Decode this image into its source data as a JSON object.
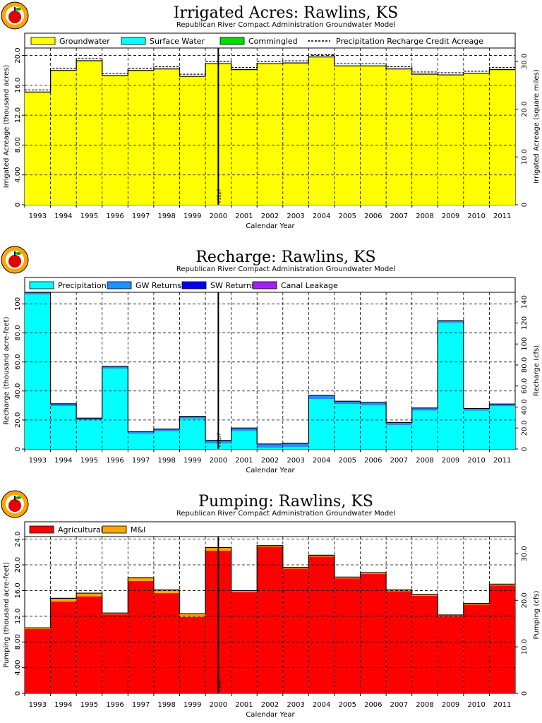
{
  "chart_data": [
    {
      "type": "area",
      "title": "Irrigated Acres: Rawlins, KS",
      "subtitle": "Republican River Compact Administration Groundwater Model",
      "xlabel": "Calendar Year",
      "ylabel": "Irrigated Acreage (thousand acres)",
      "ylabel_right": "Irrigated Acreage (square miles)",
      "years": [
        "1993",
        "1994",
        "1995",
        "1996",
        "1997",
        "1998",
        "1999",
        "2000",
        "2001",
        "2002",
        "2003",
        "2004",
        "2005",
        "2006",
        "2007",
        "2008",
        "2009",
        "2010",
        "2011"
      ],
      "ylim": [
        0,
        21.0
      ],
      "yticks": [
        0,
        4.0,
        8.0,
        12.0,
        16.0,
        20.0
      ],
      "ytick_labels": [
        "0",
        "4.00",
        "8.00",
        "12.0",
        "16.0",
        "20.0"
      ],
      "ylim_right": [
        0,
        32.8
      ],
      "yticks_right": [
        0,
        10.0,
        20.0,
        30.0
      ],
      "ytick_labels_right": [
        "0",
        "10.0",
        "20.0",
        "30.0"
      ],
      "series": [
        {
          "name": "Groundwater",
          "color": "#ffff00",
          "values": [
            15.1,
            18.0,
            19.3,
            17.3,
            18.0,
            18.2,
            17.2,
            18.9,
            18.1,
            18.9,
            19.0,
            19.8,
            18.6,
            18.6,
            18.2,
            17.5,
            17.4,
            17.6,
            18.1
          ]
        },
        {
          "name": "Surface Water",
          "color": "#00ffff",
          "values": [
            0,
            0,
            0,
            0,
            0,
            0,
            0,
            0,
            0,
            0,
            0,
            0,
            0,
            0,
            0,
            0,
            0,
            0,
            0
          ]
        },
        {
          "name": "Commingled",
          "color": "#00dd00",
          "values": [
            0,
            0,
            0,
            0,
            0,
            0,
            0,
            0,
            0,
            0,
            0,
            0,
            0,
            0,
            0,
            0,
            0,
            0,
            0
          ]
        }
      ],
      "dashed_series": {
        "name": "Precipitation Recharge Credit Acreage",
        "values": [
          15.2,
          18.1,
          19.4,
          17.4,
          18.1,
          18.3,
          17.3,
          19.0,
          18.2,
          19.0,
          19.1,
          19.9,
          18.7,
          18.7,
          18.3,
          17.6,
          17.5,
          17.7,
          18.2
        ]
      },
      "marker": {
        "label": "V12p7",
        "at": 2000.5
      },
      "grid": true,
      "legend_position": "top"
    },
    {
      "type": "area",
      "title": "Recharge: Rawlins, KS",
      "subtitle": "Republican River Compact Administration Groundwater Model",
      "xlabel": "Calendar Year",
      "ylabel": "Recharge (thousand acre-feet)",
      "ylabel_right": "Recharge (cfs)",
      "years": [
        "1993",
        "1994",
        "1995",
        "1996",
        "1997",
        "1998",
        "1999",
        "2000",
        "2001",
        "2002",
        "2003",
        "2004",
        "2005",
        "2006",
        "2007",
        "2008",
        "2009",
        "2010",
        "2011"
      ],
      "ylim": [
        0,
        108
      ],
      "yticks": [
        0,
        20.0,
        40.0,
        60.0,
        80.0,
        100
      ],
      "ytick_labels": [
        "0",
        "20.0",
        "40.0",
        "60.0",
        "80.0",
        "100"
      ],
      "ylim_right": [
        0,
        149.2
      ],
      "yticks_right": [
        0,
        20.0,
        40.0,
        60.0,
        80.0,
        100,
        120,
        140
      ],
      "ytick_labels_right": [
        "0",
        "20.0",
        "40.0",
        "60.0",
        "80.0",
        "100",
        "120",
        "140"
      ],
      "series": [
        {
          "name": "Precipitation",
          "color": "#00ffff",
          "values": [
            106.5,
            29.7,
            19.8,
            55.5,
            10.5,
            12.3,
            21.0,
            4.0,
            12.5,
            1.0,
            1.5,
            34.5,
            31.0,
            30.2,
            16.5,
            26.5,
            87.0,
            26.5,
            29.5
          ]
        },
        {
          "name": "GW Returns",
          "color": "#1e90ff",
          "values": [
            1.5,
            1.5,
            1.5,
            1.5,
            1.5,
            1.5,
            1.5,
            2.0,
            2.0,
            2.5,
            2.5,
            2.5,
            2.0,
            2.0,
            1.8,
            1.8,
            1.5,
            1.5,
            1.5
          ]
        },
        {
          "name": "SW Returns",
          "color": "#0000ee",
          "values": [
            0,
            0,
            0,
            0,
            0,
            0,
            0,
            0,
            0,
            0,
            0,
            0,
            0,
            0,
            0,
            0,
            0,
            0,
            0
          ]
        },
        {
          "name": "Canal Leakage",
          "color": "#a020f0",
          "values": [
            0,
            0,
            0,
            0,
            0,
            0,
            0,
            0,
            0,
            0,
            0,
            0,
            0,
            0,
            0,
            0,
            0,
            0,
            0
          ]
        }
      ],
      "marker": {
        "label": "V12p7",
        "at": 2000.5
      },
      "grid": true,
      "legend_position": "top"
    },
    {
      "type": "area",
      "title": "Pumping: Rawlins, KS",
      "subtitle": "Republican River Compact Administration Groundwater Model",
      "xlabel": "Calendar Year",
      "ylabel": "Pumping (thousand acre-feet)",
      "ylabel_right": "Pumping (cfs)",
      "years": [
        "1993",
        "1994",
        "1995",
        "1996",
        "1997",
        "1998",
        "1999",
        "2000",
        "2001",
        "2002",
        "2003",
        "2004",
        "2005",
        "2006",
        "2007",
        "2008",
        "2009",
        "2010",
        "2011"
      ],
      "ylim": [
        0,
        24.4
      ],
      "yticks": [
        0,
        4.0,
        8.0,
        12.0,
        16.0,
        20.0,
        24.0
      ],
      "ytick_labels": [
        "0",
        "4.00",
        "8.00",
        "12.0",
        "16.0",
        "20.0",
        "24.0"
      ],
      "ylim_right": [
        0,
        33.7
      ],
      "yticks_right": [
        0,
        10.0,
        20.0,
        30.0
      ],
      "ytick_labels_right": [
        "0",
        "10.0",
        "20.0",
        "30.0"
      ],
      "series": [
        {
          "name": "Agricultural",
          "color": "#ff0000",
          "values": [
            10.0,
            14.3,
            15.1,
            12.3,
            17.5,
            15.6,
            11.9,
            22.2,
            15.8,
            22.8,
            19.4,
            21.3,
            17.9,
            18.6,
            15.9,
            15.2,
            12.0,
            13.8,
            16.8
          ]
        },
        {
          "name": "M&I",
          "color": "#ffa500",
          "values": [
            0.2,
            0.5,
            0.5,
            0.2,
            0.5,
            0.5,
            0.5,
            0.5,
            0.2,
            0.2,
            0.2,
            0.2,
            0.2,
            0.2,
            0.2,
            0.2,
            0.2,
            0.2,
            0.2
          ]
        }
      ],
      "marker": {
        "label": "V12p7",
        "at": 2000.5
      },
      "grid": true,
      "legend_position": "top"
    }
  ]
}
